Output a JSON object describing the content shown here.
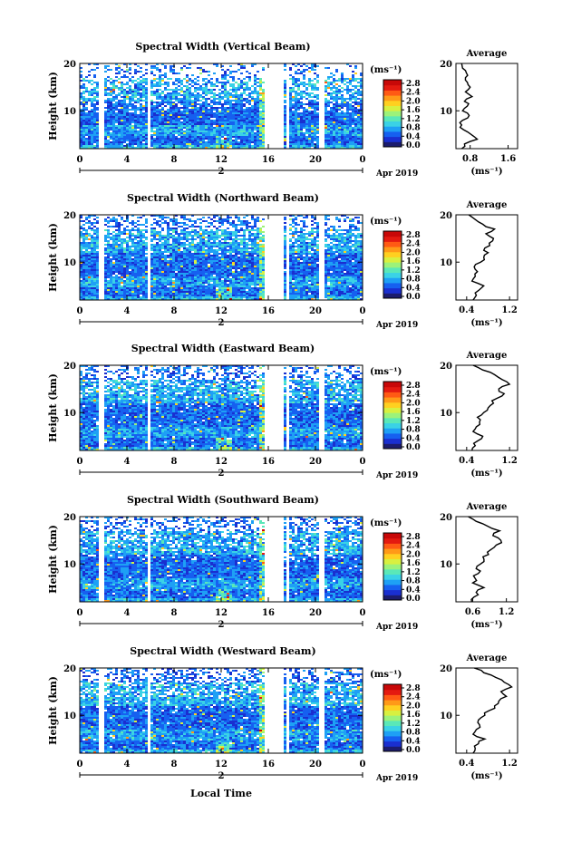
{
  "figure": {
    "xlabel": "Local Time",
    "date_label": "Apr 2019",
    "day_label": "2"
  },
  "colorbar": {
    "unit": "(ms⁻¹)",
    "ticks": [
      "2.8",
      "2.4",
      "2.0",
      "1.6",
      "1.2",
      "0.8",
      "0.4",
      "0.0"
    ],
    "colors": [
      "#1c1c6e",
      "#1a2fd0",
      "#1660f0",
      "#1ea0f5",
      "#3ad2e6",
      "#5ae8b8",
      "#9cf27a",
      "#d8f040",
      "#ffd020",
      "#ff9a18",
      "#ff5a14",
      "#e41a10",
      "#c80808"
    ]
  },
  "average_panel": {
    "title": "Average",
    "xlabel": "(ms⁻¹)"
  },
  "chart_data": [
    {
      "type": "heatmap",
      "title": "Spectral Width (Vertical Beam)",
      "ylabel": "Height (km)",
      "x_ticks": [
        "0",
        "4",
        "8",
        "12",
        "16",
        "20",
        "0"
      ],
      "xlim": [
        0,
        24
      ],
      "ylim": [
        2,
        20
      ],
      "y_ticks": [
        "20",
        "10"
      ],
      "gaps_hours": [
        [
          1.6,
          2.0
        ],
        [
          5.7,
          5.9
        ],
        [
          15.6,
          17.2
        ],
        [
          17.4,
          17.6
        ],
        [
          20.3,
          20.6
        ]
      ],
      "average": {
        "type": "line",
        "x_ticks": [
          "0.8",
          "1.6"
        ],
        "xlim": [
          0.5,
          1.8
        ],
        "height_km": [
          2,
          3,
          4,
          5,
          6,
          7,
          8,
          9,
          10,
          11,
          12,
          13,
          14,
          15,
          16,
          17,
          18,
          19,
          20
        ],
        "values": [
          0.62,
          0.68,
          0.95,
          0.82,
          0.66,
          0.62,
          0.64,
          0.78,
          0.64,
          0.74,
          0.68,
          0.84,
          0.7,
          0.8,
          0.74,
          0.7,
          0.72,
          0.64,
          0.62
        ]
      }
    },
    {
      "type": "heatmap",
      "title": "Spectral Width (Northward Beam)",
      "ylabel": "Height (km)",
      "x_ticks": [
        "0",
        "4",
        "8",
        "12",
        "16",
        "20",
        "0"
      ],
      "xlim": [
        0,
        24
      ],
      "ylim": [
        2,
        20
      ],
      "y_ticks": [
        "20",
        "10"
      ],
      "gaps_hours": [
        [
          1.6,
          2.0
        ],
        [
          5.7,
          5.9
        ],
        [
          15.6,
          17.2
        ],
        [
          17.4,
          17.6
        ],
        [
          20.3,
          20.6
        ]
      ],
      "average": {
        "type": "line",
        "x_ticks": [
          "0.4",
          "1.2"
        ],
        "xlim": [
          0.2,
          1.35
        ],
        "height_km": [
          2,
          3,
          4,
          5,
          6,
          7,
          8,
          9,
          10,
          11,
          12,
          13,
          14,
          15,
          16,
          17,
          18,
          19,
          20
        ],
        "values": [
          0.52,
          0.58,
          0.62,
          0.72,
          0.5,
          0.56,
          0.6,
          0.54,
          0.66,
          0.72,
          0.8,
          0.74,
          0.82,
          0.9,
          0.76,
          0.92,
          0.7,
          0.56,
          0.44
        ]
      }
    },
    {
      "type": "heatmap",
      "title": "Spectral Width (Eastward Beam)",
      "ylabel": "Height (km)",
      "x_ticks": [
        "0",
        "4",
        "8",
        "12",
        "16",
        "20",
        "0"
      ],
      "xlim": [
        0,
        24
      ],
      "ylim": [
        2,
        20
      ],
      "y_ticks": [
        "20",
        "10"
      ],
      "gaps_hours": [
        [
          1.6,
          2.0
        ],
        [
          5.7,
          5.9
        ],
        [
          15.6,
          17.2
        ],
        [
          17.4,
          17.6
        ],
        [
          20.3,
          20.6
        ]
      ],
      "average": {
        "type": "line",
        "x_ticks": [
          "0.4",
          "1.2"
        ],
        "xlim": [
          0.2,
          1.35
        ],
        "height_km": [
          2,
          3,
          4,
          5,
          6,
          7,
          8,
          9,
          10,
          11,
          12,
          13,
          14,
          15,
          16,
          17,
          18,
          19,
          20
        ],
        "values": [
          0.5,
          0.56,
          0.6,
          0.7,
          0.52,
          0.58,
          0.64,
          0.6,
          0.72,
          0.8,
          0.9,
          0.96,
          1.1,
          1.0,
          1.2,
          1.06,
          0.92,
          0.7,
          0.52
        ]
      }
    },
    {
      "type": "heatmap",
      "title": "Spectral Width (Southward Beam)",
      "ylabel": "Height (km)",
      "x_ticks": [
        "0",
        "4",
        "8",
        "12",
        "16",
        "20",
        "0"
      ],
      "xlim": [
        0,
        24
      ],
      "ylim": [
        2,
        20
      ],
      "y_ticks": [
        "20",
        "10"
      ],
      "gaps_hours": [
        [
          1.6,
          2.0
        ],
        [
          5.7,
          5.9
        ],
        [
          15.6,
          17.2
        ],
        [
          17.4,
          17.6
        ],
        [
          20.3,
          20.6
        ]
      ],
      "average": {
        "type": "line",
        "x_ticks": [
          "0.6",
          "1.2"
        ],
        "xlim": [
          0.3,
          1.4
        ],
        "height_km": [
          2,
          3,
          4,
          5,
          6,
          7,
          8,
          9,
          10,
          11,
          12,
          13,
          14,
          15,
          16,
          17,
          18,
          19,
          20
        ],
        "values": [
          0.58,
          0.62,
          0.66,
          0.8,
          0.6,
          0.64,
          0.7,
          0.66,
          0.74,
          0.8,
          0.88,
          0.92,
          1.02,
          1.1,
          0.96,
          1.08,
          0.86,
          0.66,
          0.52
        ]
      }
    },
    {
      "type": "heatmap",
      "title": "Spectral Width (Westward Beam)",
      "ylabel": "Height (km)",
      "x_ticks": [
        "0",
        "4",
        "8",
        "12",
        "16",
        "20",
        "0"
      ],
      "xlim": [
        0,
        24
      ],
      "ylim": [
        2,
        20
      ],
      "y_ticks": [
        "20",
        "10"
      ],
      "gaps_hours": [
        [
          1.6,
          2.0
        ],
        [
          5.7,
          5.9
        ],
        [
          15.6,
          17.2
        ],
        [
          17.4,
          17.6
        ],
        [
          20.3,
          20.6
        ]
      ],
      "average": {
        "type": "line",
        "x_ticks": [
          "0.4",
          "1.2"
        ],
        "xlim": [
          0.2,
          1.35
        ],
        "height_km": [
          2,
          3,
          4,
          5,
          6,
          7,
          8,
          9,
          10,
          11,
          12,
          13,
          14,
          15,
          16,
          17,
          18,
          19,
          20
        ],
        "values": [
          0.52,
          0.56,
          0.62,
          0.74,
          0.52,
          0.58,
          0.64,
          0.62,
          0.74,
          0.82,
          0.92,
          1.0,
          1.14,
          1.04,
          1.24,
          1.1,
          0.94,
          0.72,
          0.54
        ]
      }
    }
  ]
}
